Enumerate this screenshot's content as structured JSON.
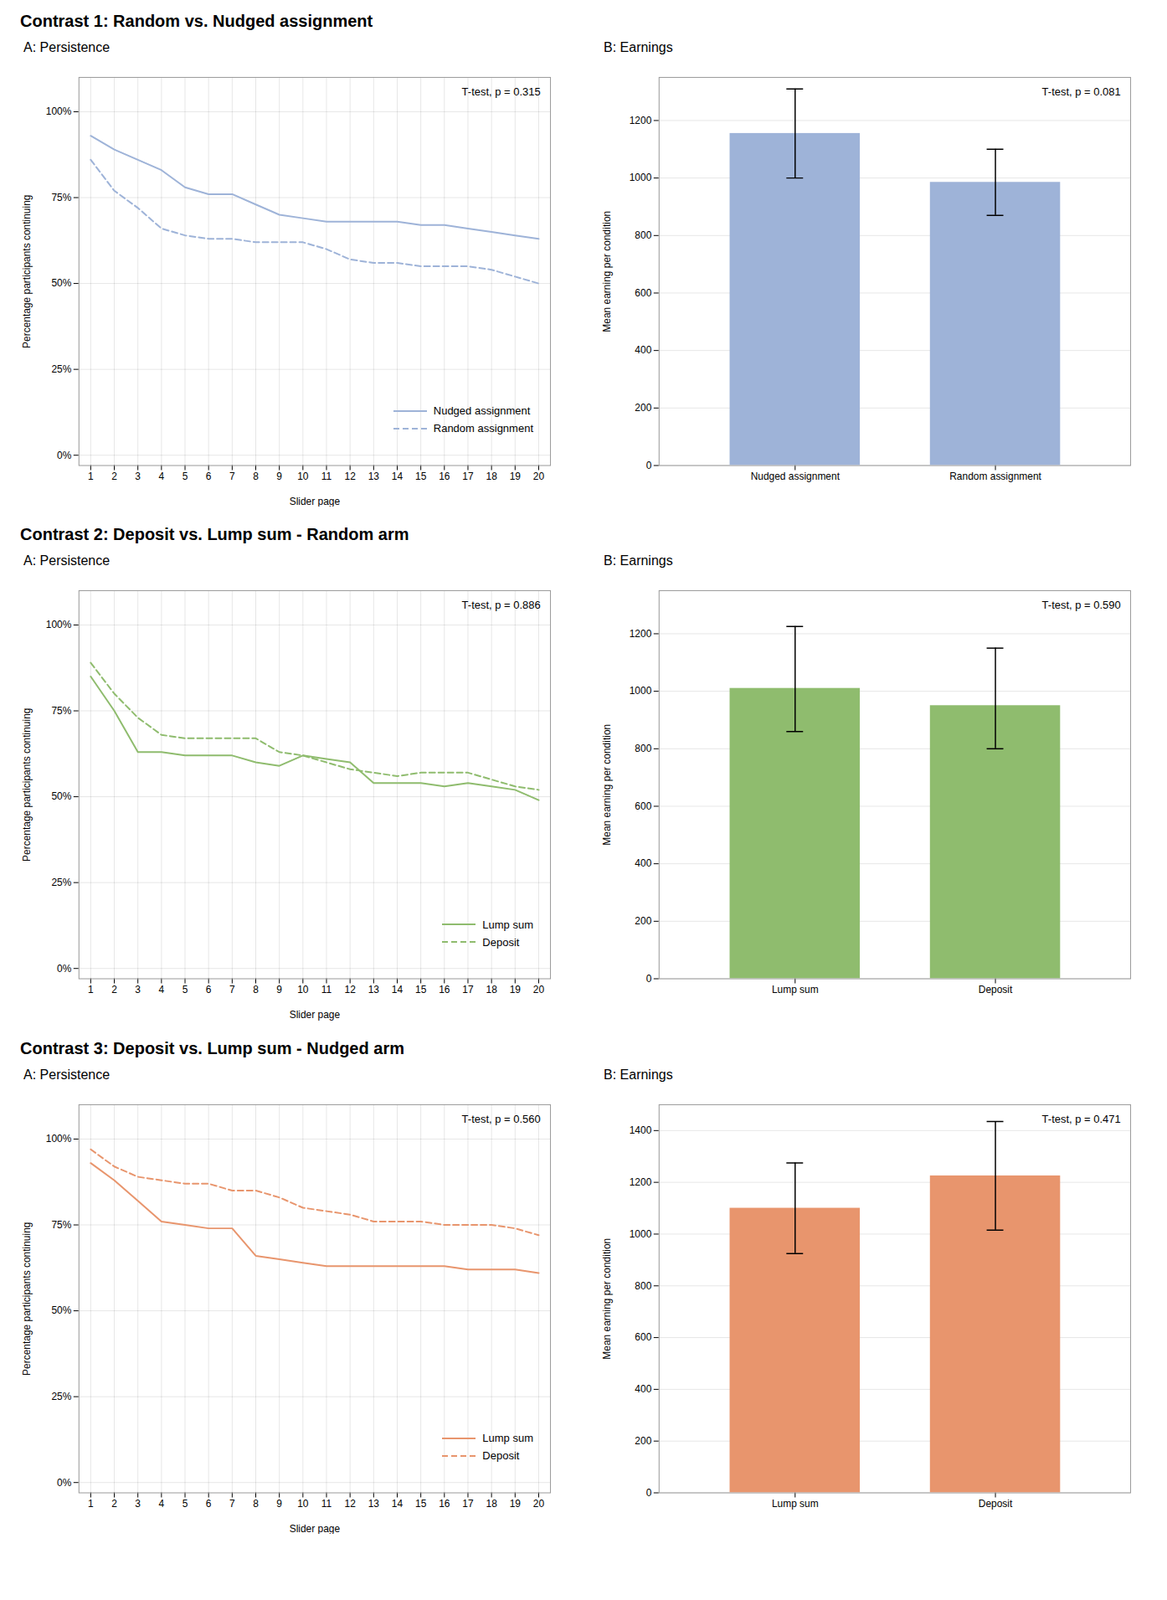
{
  "chart_data": [
    {
      "type": "line",
      "title": "Contrast 1: Random vs. Nudged assignment",
      "subtitle": "A: Persistence",
      "xlabel": "Slider page",
      "ylabel": "Percentage participants continuing",
      "x": [
        1,
        2,
        3,
        4,
        5,
        6,
        7,
        8,
        9,
        10,
        11,
        12,
        13,
        14,
        15,
        16,
        17,
        18,
        19,
        20
      ],
      "series": [
        {
          "name": "Nudged assignment",
          "color": "#9eb3d8",
          "line_style": "solid",
          "values": [
            0.93,
            0.89,
            0.86,
            0.83,
            0.78,
            0.76,
            0.76,
            0.73,
            0.7,
            0.69,
            0.68,
            0.68,
            0.68,
            0.68,
            0.67,
            0.67,
            0.66,
            0.65,
            0.64,
            0.63
          ]
        },
        {
          "name": "Random assignment",
          "color": "#9eb3d8",
          "line_style": "dashed",
          "values": [
            0.86,
            0.77,
            0.72,
            0.66,
            0.64,
            0.63,
            0.63,
            0.62,
            0.62,
            0.62,
            0.6,
            0.57,
            0.56,
            0.56,
            0.55,
            0.55,
            0.55,
            0.54,
            0.52,
            0.5
          ]
        }
      ],
      "xlim": [
        0.5,
        20.5
      ],
      "xticks": [
        1,
        2,
        3,
        4,
        5,
        6,
        7,
        8,
        9,
        10,
        11,
        12,
        13,
        14,
        15,
        16,
        17,
        18,
        19,
        20
      ],
      "ylim": [
        -0.03,
        1.1
      ],
      "yticks": [
        {
          "value": 0.0,
          "label": "0%"
        },
        {
          "value": 0.25,
          "label": "25%"
        },
        {
          "value": 0.5,
          "label": "50%"
        },
        {
          "value": 0.75,
          "label": "75%"
        },
        {
          "value": 1.0,
          "label": "100%"
        }
      ],
      "annotations": [
        "T-test, p = 0.315"
      ],
      "legend": "lower right",
      "grid": true
    },
    {
      "type": "bar",
      "subtitle": "B: Earnings",
      "ylabel": "Mean earning per condition",
      "categories": [
        "Nudged assignment",
        "Random assignment"
      ],
      "values": [
        1155,
        985
      ],
      "error_upper": [
        155,
        115
      ],
      "error_lower": [
        155,
        115
      ],
      "color": "#9eb3d8",
      "ylim": [
        0,
        1350
      ],
      "yticks": [
        0,
        200,
        400,
        600,
        800,
        1000,
        1200
      ],
      "annotations": [
        "T-test, p = 0.081"
      ],
      "grid": "y"
    },
    {
      "type": "line",
      "title": "Contrast 2: Deposit vs. Lump sum - Random arm",
      "subtitle": "A: Persistence",
      "xlabel": "Slider page",
      "ylabel": "Percentage participants continuing",
      "x": [
        1,
        2,
        3,
        4,
        5,
        6,
        7,
        8,
        9,
        10,
        11,
        12,
        13,
        14,
        15,
        16,
        17,
        18,
        19,
        20
      ],
      "series": [
        {
          "name": "Lump sum",
          "color": "#8fbc6e",
          "line_style": "solid",
          "values": [
            0.85,
            0.75,
            0.63,
            0.63,
            0.62,
            0.62,
            0.62,
            0.6,
            0.59,
            0.62,
            0.61,
            0.6,
            0.54,
            0.54,
            0.54,
            0.53,
            0.54,
            0.53,
            0.52,
            0.49
          ]
        },
        {
          "name": "Deposit",
          "color": "#8fbc6e",
          "line_style": "dashed",
          "values": [
            0.89,
            0.8,
            0.73,
            0.68,
            0.67,
            0.67,
            0.67,
            0.67,
            0.63,
            0.62,
            0.6,
            0.58,
            0.57,
            0.56,
            0.57,
            0.57,
            0.57,
            0.55,
            0.53,
            0.52
          ]
        }
      ],
      "xlim": [
        0.5,
        20.5
      ],
      "xticks": [
        1,
        2,
        3,
        4,
        5,
        6,
        7,
        8,
        9,
        10,
        11,
        12,
        13,
        14,
        15,
        16,
        17,
        18,
        19,
        20
      ],
      "ylim": [
        -0.03,
        1.1
      ],
      "yticks": [
        {
          "value": 0.0,
          "label": "0%"
        },
        {
          "value": 0.25,
          "label": "25%"
        },
        {
          "value": 0.5,
          "label": "50%"
        },
        {
          "value": 0.75,
          "label": "75%"
        },
        {
          "value": 1.0,
          "label": "100%"
        }
      ],
      "annotations": [
        "T-test, p = 0.886"
      ],
      "legend": "lower right",
      "grid": true
    },
    {
      "type": "bar",
      "subtitle": "B: Earnings",
      "ylabel": "Mean earning per condition",
      "categories": [
        "Lump sum",
        "Deposit"
      ],
      "values": [
        1010,
        950
      ],
      "error_upper": [
        215,
        200
      ],
      "error_lower": [
        150,
        150
      ],
      "color": "#8fbc6e",
      "ylim": [
        0,
        1350
      ],
      "yticks": [
        0,
        200,
        400,
        600,
        800,
        1000,
        1200
      ],
      "annotations": [
        "T-test, p = 0.590"
      ],
      "grid": "y"
    },
    {
      "type": "line",
      "title": "Contrast 3: Deposit vs. Lump sum - Nudged arm",
      "subtitle": "A: Persistence",
      "xlabel": "Slider page",
      "ylabel": "Percentage participants continuing",
      "x": [
        1,
        2,
        3,
        4,
        5,
        6,
        7,
        8,
        9,
        10,
        11,
        12,
        13,
        14,
        15,
        16,
        17,
        18,
        19,
        20
      ],
      "series": [
        {
          "name": "Lump sum",
          "color": "#e8956d",
          "line_style": "solid",
          "values": [
            0.93,
            0.88,
            0.82,
            0.76,
            0.75,
            0.74,
            0.74,
            0.66,
            0.65,
            0.64,
            0.63,
            0.63,
            0.63,
            0.63,
            0.63,
            0.63,
            0.62,
            0.62,
            0.62,
            0.61
          ]
        },
        {
          "name": "Deposit",
          "color": "#e8956d",
          "line_style": "dashed",
          "values": [
            0.97,
            0.92,
            0.89,
            0.88,
            0.87,
            0.87,
            0.85,
            0.85,
            0.83,
            0.8,
            0.79,
            0.78,
            0.76,
            0.76,
            0.76,
            0.75,
            0.75,
            0.75,
            0.74,
            0.72
          ]
        }
      ],
      "xlim": [
        0.5,
        20.5
      ],
      "xticks": [
        1,
        2,
        3,
        4,
        5,
        6,
        7,
        8,
        9,
        10,
        11,
        12,
        13,
        14,
        15,
        16,
        17,
        18,
        19,
        20
      ],
      "ylim": [
        -0.03,
        1.1
      ],
      "yticks": [
        {
          "value": 0.0,
          "label": "0%"
        },
        {
          "value": 0.25,
          "label": "25%"
        },
        {
          "value": 0.5,
          "label": "50%"
        },
        {
          "value": 0.75,
          "label": "75%"
        },
        {
          "value": 1.0,
          "label": "100%"
        }
      ],
      "annotations": [
        "T-test, p = 0.560"
      ],
      "legend": "lower right",
      "grid": true
    },
    {
      "type": "bar",
      "subtitle": "B: Earnings",
      "ylabel": "Mean earning per condition",
      "categories": [
        "Lump sum",
        "Deposit"
      ],
      "values": [
        1100,
        1225
      ],
      "error_upper": [
        175,
        210
      ],
      "error_lower": [
        175,
        210
      ],
      "color": "#e8956d",
      "ylim": [
        0,
        1500
      ],
      "yticks": [
        0,
        200,
        400,
        600,
        800,
        1000,
        1200,
        1400
      ],
      "annotations": [
        "T-test, p = 0.471"
      ],
      "grid": "y"
    }
  ]
}
